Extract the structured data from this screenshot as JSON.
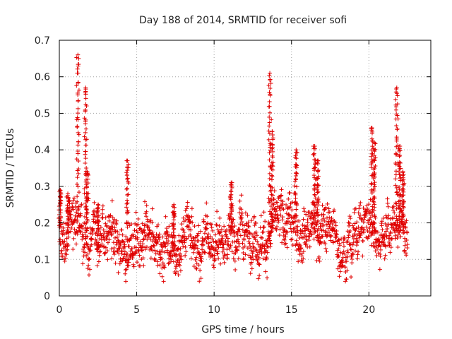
{
  "chart_data": {
    "type": "scatter",
    "title": "Day 188 of 2014, SRMTID for receiver sofi",
    "xlabel": "GPS time / hours",
    "ylabel": "SRMTID / TECUs",
    "xlim": [
      0,
      24
    ],
    "ylim": [
      0,
      0.7
    ],
    "xticks": [
      0,
      5,
      10,
      15,
      20
    ],
    "xtick_labels": [
      "0",
      "5",
      "10",
      "15",
      "20"
    ],
    "yticks": [
      0,
      0.1,
      0.2,
      0.3,
      0.4,
      0.5,
      0.6,
      0.7
    ],
    "ytick_labels": [
      "0",
      "0.1",
      "0.2",
      "0.3",
      "0.4",
      "0.5",
      "0.6",
      "0.7"
    ],
    "grid": true,
    "marker": "+",
    "color": "#e00000",
    "series": [
      {
        "name": "SRMTID",
        "data_range_hours": [
          0,
          22.5
        ],
        "background_level": [
          [
            0,
            0.18
          ],
          [
            0.5,
            0.17
          ],
          [
            1,
            0.2
          ],
          [
            1.5,
            0.2
          ],
          [
            2,
            0.17
          ],
          [
            2.5,
            0.16
          ],
          [
            3,
            0.15
          ],
          [
            3.5,
            0.15
          ],
          [
            4,
            0.14
          ],
          [
            4.5,
            0.15
          ],
          [
            5,
            0.13
          ],
          [
            5.5,
            0.13
          ],
          [
            6,
            0.14
          ],
          [
            6.5,
            0.15
          ],
          [
            7,
            0.15
          ],
          [
            7.5,
            0.13
          ],
          [
            8,
            0.12
          ],
          [
            8.5,
            0.13
          ],
          [
            9,
            0.13
          ],
          [
            9.5,
            0.14
          ],
          [
            10,
            0.14
          ],
          [
            10.5,
            0.16
          ],
          [
            11,
            0.17
          ],
          [
            11.5,
            0.17
          ],
          [
            12,
            0.17
          ],
          [
            12.5,
            0.17
          ],
          [
            13,
            0.16
          ],
          [
            13.5,
            0.16
          ],
          [
            14,
            0.19
          ],
          [
            14.5,
            0.2
          ],
          [
            15,
            0.19
          ],
          [
            15.5,
            0.19
          ],
          [
            16,
            0.2
          ],
          [
            16.5,
            0.19
          ],
          [
            17,
            0.19
          ],
          [
            17.5,
            0.18
          ],
          [
            18,
            0.15
          ],
          [
            18.5,
            0.14
          ],
          [
            19,
            0.16
          ],
          [
            19.5,
            0.2
          ],
          [
            20,
            0.2
          ],
          [
            20.5,
            0.18
          ],
          [
            21,
            0.17
          ],
          [
            21.5,
            0.19
          ],
          [
            22,
            0.19
          ],
          [
            22.5,
            0.16
          ]
        ],
        "spikes": [
          {
            "t": 0.05,
            "peak": 0.29
          },
          {
            "t": 0.55,
            "peak": 0.28
          },
          {
            "t": 1.2,
            "peak": 0.66
          },
          {
            "t": 1.7,
            "peak": 0.57
          },
          {
            "t": 1.8,
            "peak": 0.34
          },
          {
            "t": 2.5,
            "peak": 0.25
          },
          {
            "t": 4.4,
            "peak": 0.37
          },
          {
            "t": 7.4,
            "peak": 0.25
          },
          {
            "t": 11.1,
            "peak": 0.31
          },
          {
            "t": 13.6,
            "peak": 0.61
          },
          {
            "t": 13.75,
            "peak": 0.45
          },
          {
            "t": 15.3,
            "peak": 0.4
          },
          {
            "t": 16.5,
            "peak": 0.41
          },
          {
            "t": 16.7,
            "peak": 0.37
          },
          {
            "t": 20.2,
            "peak": 0.46
          },
          {
            "t": 20.35,
            "peak": 0.42
          },
          {
            "t": 21.8,
            "peak": 0.57
          },
          {
            "t": 22.0,
            "peak": 0.41
          },
          {
            "t": 22.2,
            "peak": 0.34
          }
        ]
      }
    ]
  }
}
